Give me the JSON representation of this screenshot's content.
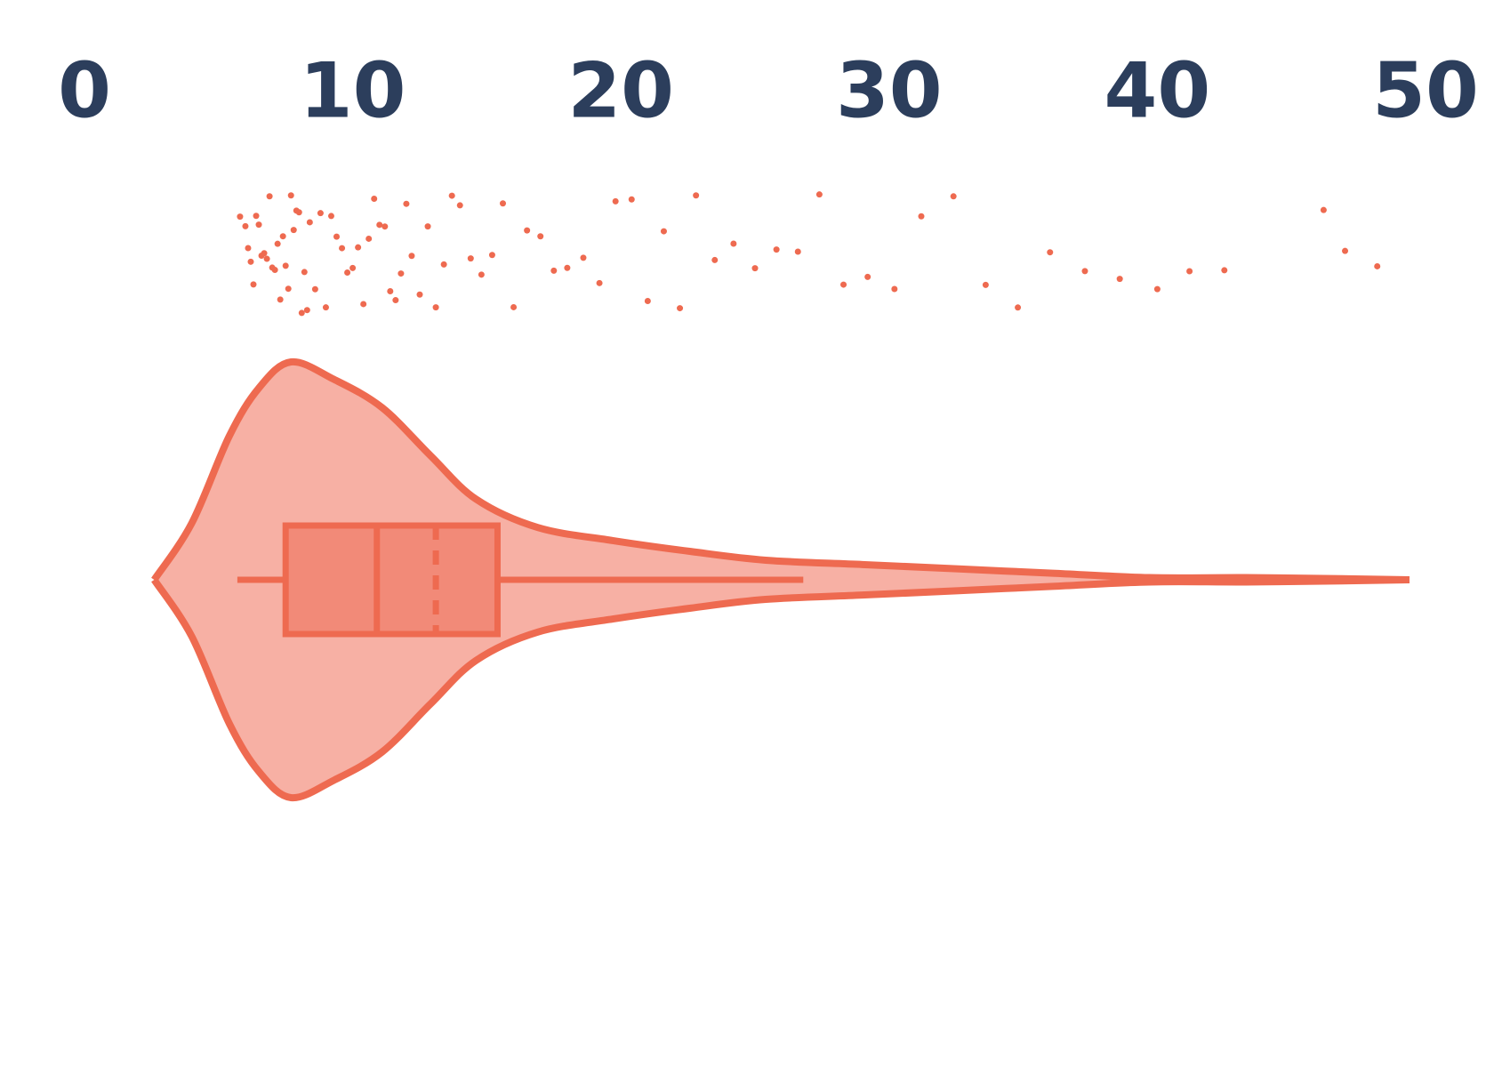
{
  "chart_data": {
    "type": "violin",
    "xlim": [
      0,
      50
    ],
    "xticks": [
      0,
      10,
      20,
      30,
      40,
      50
    ],
    "color": "#ee6a50",
    "fill": "#f7b0a4",
    "box_fill": "#f28a78",
    "tick_color": "#2c3e5c",
    "violin": {
      "x": [
        2.6,
        4.0,
        5.4,
        6.5,
        7.7,
        9.3,
        11.1,
        12.9,
        14.6,
        16.9,
        19.7,
        22.6,
        25.4,
        29.0,
        32.6,
        36.1,
        39.7,
        43.3,
        46.9,
        49.4
      ],
      "density": [
        0,
        0.26,
        0.66,
        0.88,
        1.0,
        0.92,
        0.79,
        0.57,
        0.37,
        0.24,
        0.18,
        0.13,
        0.09,
        0.07,
        0.05,
        0.03,
        0.01,
        0.01,
        0.005,
        0
      ]
    },
    "box": {
      "whisker_low": 5.7,
      "q1": 7.5,
      "median": 10.9,
      "mean": 13.1,
      "q3": 15.4,
      "whisker_high": 26.8
    },
    "points": [
      5.8,
      6.0,
      6.1,
      6.2,
      6.3,
      6.4,
      6.5,
      6.6,
      6.7,
      6.8,
      6.9,
      7.0,
      7.1,
      7.2,
      7.3,
      7.4,
      7.5,
      7.6,
      7.7,
      7.8,
      7.9,
      8.0,
      8.1,
      8.2,
      8.3,
      8.4,
      8.6,
      8.8,
      9.0,
      9.2,
      9.4,
      9.6,
      9.8,
      10.0,
      10.2,
      10.4,
      10.6,
      10.8,
      11.0,
      11.2,
      11.4,
      11.6,
      11.8,
      12.0,
      12.2,
      12.5,
      12.8,
      13.1,
      13.4,
      13.7,
      14.0,
      14.4,
      14.8,
      15.2,
      15.6,
      16.0,
      16.5,
      17.0,
      17.5,
      18.0,
      18.6,
      19.2,
      19.8,
      20.4,
      21.0,
      21.6,
      22.2,
      22.8,
      23.5,
      24.2,
      25.0,
      25.8,
      26.6,
      27.4,
      28.3,
      29.2,
      30.2,
      31.2,
      32.4,
      33.6,
      34.8,
      36.0,
      37.3,
      38.6,
      40.0,
      41.2,
      42.5,
      46.2,
      47.0,
      48.2
    ]
  }
}
